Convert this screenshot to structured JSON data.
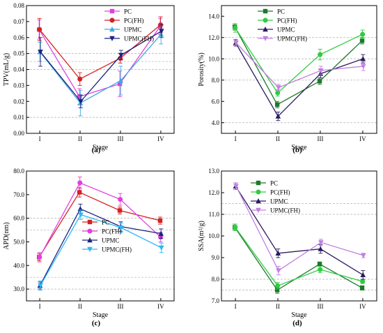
{
  "chart_data": [
    {
      "type": "line",
      "panel_label": "(a)",
      "xlabel": "Stage",
      "ylabel": "TPV(mL/g)",
      "categories": [
        "I",
        "II",
        "III",
        "IV"
      ],
      "ylim": [
        0.0,
        0.08
      ],
      "yticks": [
        "0.00",
        "0.01",
        "0.02",
        "0.03",
        "0.04",
        "0.05",
        "0.06",
        "0.07",
        "0.08"
      ],
      "ytick_values": [
        0.0,
        0.01,
        0.02,
        0.03,
        0.04,
        0.05,
        0.06,
        0.07,
        0.08
      ],
      "grid_y": [
        0.01,
        0.04,
        0.045,
        0.05
      ],
      "legend_position": "top-right",
      "series": [
        {
          "name": "PC",
          "color": "#e040e0",
          "marker": "square",
          "values": [
            0.065,
            0.023,
            0.031,
            0.067
          ],
          "errors": [
            0.006,
            0.005,
            0.008,
            0.005
          ]
        },
        {
          "name": "PC(FH)",
          "color": "#d62020",
          "marker": "circle",
          "values": [
            0.065,
            0.034,
            0.047,
            0.068
          ],
          "errors": [
            0.007,
            0.004,
            0.003,
            0.005
          ]
        },
        {
          "name": "UPMC",
          "color": "#3fa9e0",
          "marker": "triangle-up",
          "values": [
            0.051,
            0.019,
            0.033,
            0.062
          ],
          "errors": [
            0.006,
            0.008,
            0.009,
            0.006
          ]
        },
        {
          "name": "UPMC(FH)",
          "color": "#1a237e",
          "marker": "triangle-down",
          "values": [
            0.051,
            0.02,
            0.049,
            0.064
          ],
          "errors": [
            0.009,
            0.004,
            0.003,
            0.004
          ]
        }
      ]
    },
    {
      "type": "line",
      "panel_label": "(b)",
      "xlabel": "Stage",
      "ylabel": "Porosity(%)",
      "categories": [
        "I",
        "II",
        "III",
        "IV"
      ],
      "ylim": [
        3.0,
        15.0
      ],
      "yticks": [
        "4.0",
        "6.0",
        "8.0",
        "10.0",
        "12.0",
        "14.0"
      ],
      "ytick_values": [
        4.0,
        6.0,
        8.0,
        10.0,
        12.0,
        14.0
      ],
      "grid_y": [
        4.0,
        8.0,
        10.0,
        12.0
      ],
      "legend_position": "top-right",
      "series": [
        {
          "name": "PC",
          "color": "#1b7a2a",
          "marker": "square",
          "values": [
            13.0,
            5.7,
            7.9,
            11.7
          ],
          "errors": [
            0.3,
            0.3,
            0.3,
            0.3
          ]
        },
        {
          "name": "PC(FH)",
          "color": "#2ecc40",
          "marker": "circle",
          "values": [
            12.9,
            6.8,
            10.4,
            12.3
          ],
          "errors": [
            0.4,
            0.3,
            0.5,
            0.4
          ]
        },
        {
          "name": "UPMC",
          "color": "#2a1a5e",
          "marker": "triangle-up",
          "values": [
            11.5,
            4.6,
            8.6,
            10.0
          ],
          "errors": [
            0.3,
            0.4,
            0.4,
            0.4
          ]
        },
        {
          "name": "UPMC(FH)",
          "color": "#c080e0",
          "marker": "triangle-down",
          "values": [
            11.5,
            7.3,
            8.9,
            9.3
          ],
          "errors": [
            0.2,
            0.3,
            0.4,
            0.4
          ]
        }
      ]
    },
    {
      "type": "line",
      "panel_label": "(c)",
      "xlabel": "Stage",
      "ylabel": "APD(nm)",
      "categories": [
        "I",
        "II",
        "III",
        "IV"
      ],
      "ylim": [
        25,
        80
      ],
      "yticks": [
        "30.0",
        "40.0",
        "50.0",
        "60.0",
        "70.0",
        "80.0"
      ],
      "ytick_values": [
        30,
        40,
        50,
        60,
        70,
        80
      ],
      "grid_y": [
        30,
        35,
        55,
        60
      ],
      "legend_position": "bottom-center",
      "series": [
        {
          "name": "PC",
          "color": "#d62020",
          "marker": "square",
          "values": [
            43.5,
            71.0,
            63.3,
            59.0
          ],
          "errors": [
            1.5,
            2.0,
            1.5,
            1.5
          ]
        },
        {
          "name": "PC(FH)",
          "color": "#e040e0",
          "marker": "circle",
          "values": [
            43.5,
            75.0,
            68.0,
            52.0
          ],
          "errors": [
            2.0,
            2.5,
            2.5,
            2.0
          ]
        },
        {
          "name": "UPMC",
          "color": "#1a237e",
          "marker": "triangle-up",
          "values": [
            31.5,
            64.0,
            56.5,
            53.5
          ],
          "errors": [
            1.5,
            2.0,
            2.0,
            2.0
          ]
        },
        {
          "name": "UPMC(FH)",
          "color": "#29b6f6",
          "marker": "triangle-down",
          "values": [
            31.5,
            61.5,
            56.0,
            47.5
          ],
          "errors": [
            2.0,
            2.0,
            2.0,
            2.0
          ]
        }
      ]
    },
    {
      "type": "line",
      "panel_label": "(d)",
      "xlabel": "Stage",
      "ylabel": "SSA(m²/g)",
      "categories": [
        "I",
        "II",
        "III",
        "IV"
      ],
      "ylim": [
        7.0,
        13.0
      ],
      "yticks": [
        "7.0",
        "8.0",
        "9.0",
        "10.0",
        "11.0",
        "12.0",
        "13.0"
      ],
      "ytick_values": [
        7.0,
        8.0,
        9.0,
        10.0,
        11.0,
        12.0,
        13.0
      ],
      "grid_y": [
        7.5,
        8.0,
        11.0,
        11.5
      ],
      "legend_position": "top-right",
      "series": [
        {
          "name": "PC",
          "color": "#1b7a2a",
          "marker": "square",
          "values": [
            10.4,
            7.5,
            8.7,
            7.6
          ],
          "errors": [
            0.15,
            0.15,
            0.1,
            0.1
          ]
        },
        {
          "name": "PC(FH)",
          "color": "#2ecc40",
          "marker": "circle",
          "values": [
            10.4,
            7.7,
            8.45,
            7.9
          ],
          "errors": [
            0.15,
            0.15,
            0.15,
            0.1
          ]
        },
        {
          "name": "UPMC",
          "color": "#2a1a5e",
          "marker": "triangle-up",
          "values": [
            12.3,
            9.2,
            9.4,
            8.2
          ],
          "errors": [
            0.15,
            0.2,
            0.2,
            0.2
          ]
        },
        {
          "name": "UPMC(FH)",
          "color": "#c080e0",
          "marker": "triangle-down",
          "values": [
            12.3,
            8.4,
            9.7,
            9.1
          ],
          "errors": [
            0.15,
            0.2,
            0.15,
            0.1
          ]
        }
      ]
    }
  ]
}
